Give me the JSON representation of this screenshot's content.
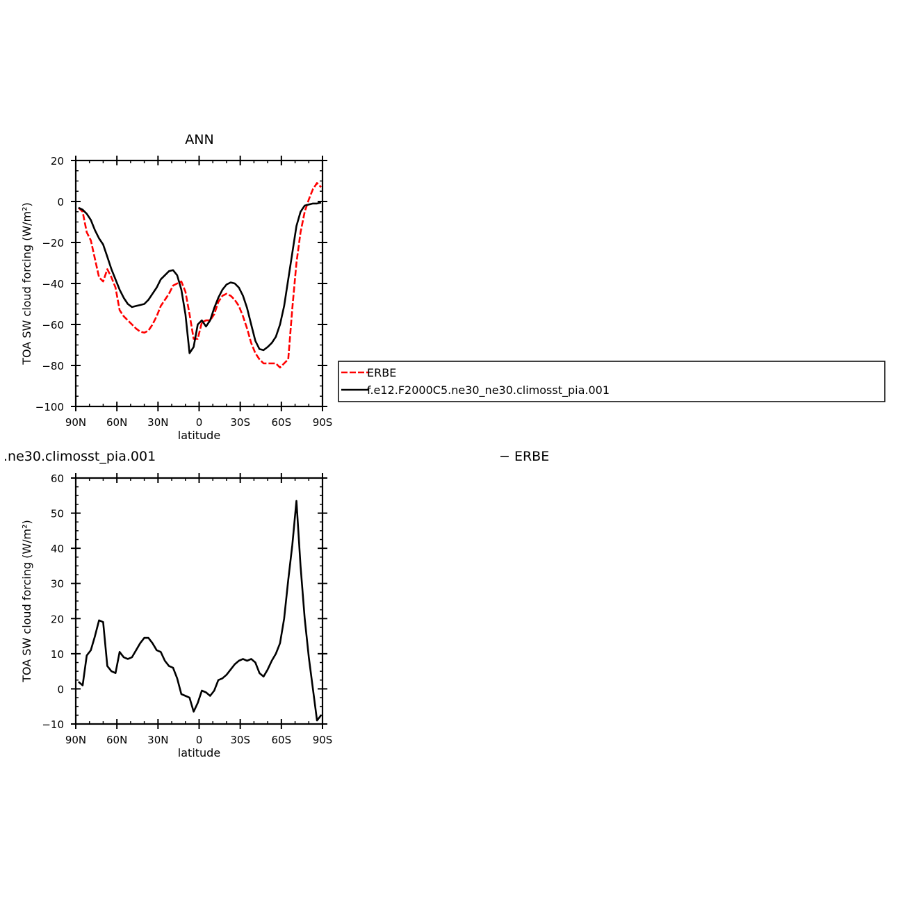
{
  "chart_data": [
    {
      "type": "line",
      "title": "ANN",
      "xlabel": "latitude",
      "ylabel": "TOA SW cloud forcing (W/m²)",
      "xlim": [
        90,
        -90
      ],
      "ylim": [
        -100,
        20
      ],
      "x_ticks": [
        90,
        60,
        30,
        0,
        -30,
        -60,
        -90
      ],
      "x_tick_labels": [
        "90N",
        "60N",
        "30N",
        "0",
        "30S",
        "60S",
        "90S"
      ],
      "y_ticks": [
        20,
        0,
        -20,
        -40,
        -60,
        -80,
        -100
      ],
      "y_tick_labels": [
        "20",
        "0",
        "−20",
        "−40",
        "−60",
        "−80",
        "−100"
      ],
      "legend": "right",
      "series": [
        {
          "name": "ERBE",
          "color": "#ff0000",
          "dash": "dashed",
          "x": [
            88,
            85,
            82,
            79,
            76,
            73,
            70,
            67,
            64,
            61,
            58,
            55,
            52,
            49,
            46,
            43,
            40,
            37,
            34,
            31,
            28,
            25,
            22,
            19,
            16,
            13,
            10,
            7,
            4,
            1,
            -2,
            -5,
            -8,
            -11,
            -14,
            -17,
            -20,
            -23,
            -26,
            -29,
            -32,
            -35,
            -38,
            -41,
            -44,
            -47,
            -50,
            -53,
            -56,
            -59,
            -62,
            -65,
            -68,
            -71,
            -74,
            -77,
            -80,
            -83,
            -86,
            -89
          ],
          "y": [
            -3,
            -5,
            -15,
            -19,
            -28,
            -37,
            -39,
            -33,
            -37,
            -42,
            -53,
            -56,
            -58,
            -60,
            -62,
            -63.5,
            -64,
            -63,
            -60,
            -56,
            -51,
            -48,
            -45,
            -41,
            -40,
            -39,
            -44,
            -55,
            -67,
            -67,
            -59,
            -58,
            -58,
            -55,
            -49,
            -46,
            -45,
            -46,
            -48,
            -51,
            -56,
            -62,
            -69,
            -74,
            -77,
            -79,
            -79,
            -79,
            -79,
            -81,
            -79,
            -77,
            -52,
            -30,
            -15,
            -5,
            1,
            6,
            9,
            7
          ]
        },
        {
          "name": "f.e12.F2000C5.ne30_ne30.climosst_pia.001",
          "color": "#000000",
          "dash": "solid",
          "x": [
            88,
            85,
            82,
            79,
            76,
            73,
            70,
            67,
            64,
            61,
            58,
            55,
            52,
            49,
            46,
            43,
            40,
            37,
            34,
            31,
            28,
            25,
            22,
            19,
            16,
            13,
            10,
            7,
            4,
            1,
            -2,
            -5,
            -8,
            -11,
            -14,
            -17,
            -20,
            -23,
            -26,
            -29,
            -32,
            -35,
            -38,
            -41,
            -44,
            -47,
            -50,
            -53,
            -56,
            -59,
            -62,
            -65,
            -68,
            -71,
            -74,
            -77,
            -80,
            -83,
            -86,
            -89
          ],
          "y": [
            -3,
            -4,
            -6,
            -9,
            -14,
            -18,
            -21,
            -27,
            -33,
            -38,
            -43,
            -47,
            -50,
            -51.5,
            -51,
            -50.5,
            -50,
            -48,
            -45,
            -42,
            -38,
            -36,
            -34,
            -33.5,
            -36,
            -43,
            -55,
            -74,
            -71,
            -60,
            -58,
            -61,
            -58,
            -52,
            -47,
            -43,
            -40.5,
            -39.5,
            -40,
            -42,
            -46,
            -52,
            -60,
            -68,
            -72,
            -72.5,
            -71,
            -69,
            -66,
            -60,
            -51,
            -38,
            -25,
            -12,
            -5,
            -2,
            -1.5,
            -1,
            -1,
            -0.5
          ]
        }
      ]
    },
    {
      "type": "line",
      "title": ".ne30.climosst_pia.001",
      "title_right": "− ERBE",
      "xlabel": "latitude",
      "ylabel": "TOA SW cloud forcing (W/m²)",
      "xlim": [
        90,
        -90
      ],
      "ylim": [
        -10,
        60
      ],
      "x_ticks": [
        90,
        60,
        30,
        0,
        -30,
        -60,
        -90
      ],
      "x_tick_labels": [
        "90N",
        "60N",
        "30N",
        "0",
        "30S",
        "60S",
        "90S"
      ],
      "y_ticks": [
        60,
        50,
        40,
        30,
        20,
        10,
        0,
        -10
      ],
      "y_tick_labels": [
        "60",
        "50",
        "40",
        "30",
        "20",
        "10",
        "0",
        "−10"
      ],
      "series": [
        {
          "color": "#000000",
          "dash": "solid",
          "x": [
            88,
            85,
            82,
            79,
            76,
            73,
            70,
            67,
            64,
            61,
            58,
            55,
            52,
            49,
            46,
            43,
            40,
            37,
            34,
            31,
            28,
            25,
            22,
            19,
            16,
            13,
            10,
            7,
            4,
            1,
            -2,
            -5,
            -8,
            -11,
            -14,
            -17,
            -20,
            -23,
            -26,
            -29,
            -32,
            -35,
            -38,
            -41,
            -44,
            -47,
            -50,
            -53,
            -56,
            -59,
            -62,
            -65,
            -68,
            -71,
            -74,
            -77,
            -80,
            -83,
            -86,
            -89
          ],
          "y": [
            2,
            1,
            9.5,
            11,
            15,
            19.5,
            19,
            6.5,
            5,
            4.5,
            10.5,
            9,
            8.5,
            9,
            11,
            13,
            14.5,
            14.5,
            13,
            11,
            10.5,
            8,
            6.5,
            6,
            3,
            -1.5,
            -2,
            -2.5,
            -6.5,
            -4,
            -0.5,
            -1,
            -2,
            -0.5,
            2.5,
            3,
            4,
            5.5,
            7,
            8,
            8.5,
            8,
            8.5,
            7.5,
            4.5,
            3.5,
            5.5,
            8,
            10,
            13,
            20,
            31,
            41,
            53.5,
            35,
            20,
            9,
            0,
            -9,
            -7.5
          ]
        }
      ]
    }
  ]
}
